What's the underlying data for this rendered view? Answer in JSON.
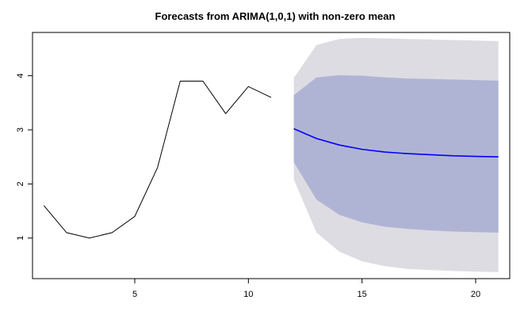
{
  "chart_data": {
    "type": "line",
    "title": "Forecasts from ARIMA(1,0,1) with non-zero mean",
    "xlabel": "",
    "ylabel": "",
    "xlim": [
      0.5,
      21.5
    ],
    "ylim": [
      0.25,
      4.8
    ],
    "x_ticks": [
      5,
      10,
      15,
      20
    ],
    "x_tick_labels": [
      "5",
      "10",
      "15",
      "20"
    ],
    "y_ticks": [
      1,
      2,
      3,
      4
    ],
    "y_tick_labels": [
      "1",
      "2",
      "3",
      "4"
    ],
    "grid": false,
    "series": [
      {
        "role": "observed",
        "x": [
          1,
          2,
          3,
          4,
          5,
          6,
          7,
          8,
          9,
          10,
          11
        ],
        "values": [
          1.6,
          1.1,
          1.0,
          1.1,
          1.4,
          2.3,
          3.9,
          3.9,
          3.3,
          3.8,
          3.6
        ],
        "color": "#000000"
      },
      {
        "role": "forecast",
        "x": [
          12,
          13,
          14,
          15,
          16,
          17,
          18,
          19,
          20,
          21
        ],
        "values": [
          3.02,
          2.84,
          2.72,
          2.64,
          2.59,
          2.56,
          2.54,
          2.52,
          2.51,
          2.5
        ],
        "color": "#0000ff"
      }
    ],
    "intervals": [
      {
        "role": "outer-band",
        "x": [
          12,
          13,
          14,
          15,
          16,
          17,
          18,
          19,
          20,
          21
        ],
        "lower": [
          2.08,
          1.1,
          0.75,
          0.57,
          0.48,
          0.43,
          0.41,
          0.39,
          0.38,
          0.37
        ],
        "upper": [
          3.96,
          4.57,
          4.68,
          4.7,
          4.69,
          4.68,
          4.67,
          4.66,
          4.65,
          4.64
        ],
        "color": "#dcdce2"
      },
      {
        "role": "inner-band",
        "x": [
          12,
          13,
          14,
          15,
          16,
          17,
          18,
          19,
          20,
          21
        ],
        "lower": [
          2.4,
          1.71,
          1.43,
          1.29,
          1.21,
          1.17,
          1.14,
          1.12,
          1.11,
          1.1
        ],
        "upper": [
          3.64,
          3.97,
          4.01,
          4.0,
          3.97,
          3.95,
          3.94,
          3.93,
          3.92,
          3.91
        ],
        "color": "#b0b4d4"
      }
    ]
  }
}
